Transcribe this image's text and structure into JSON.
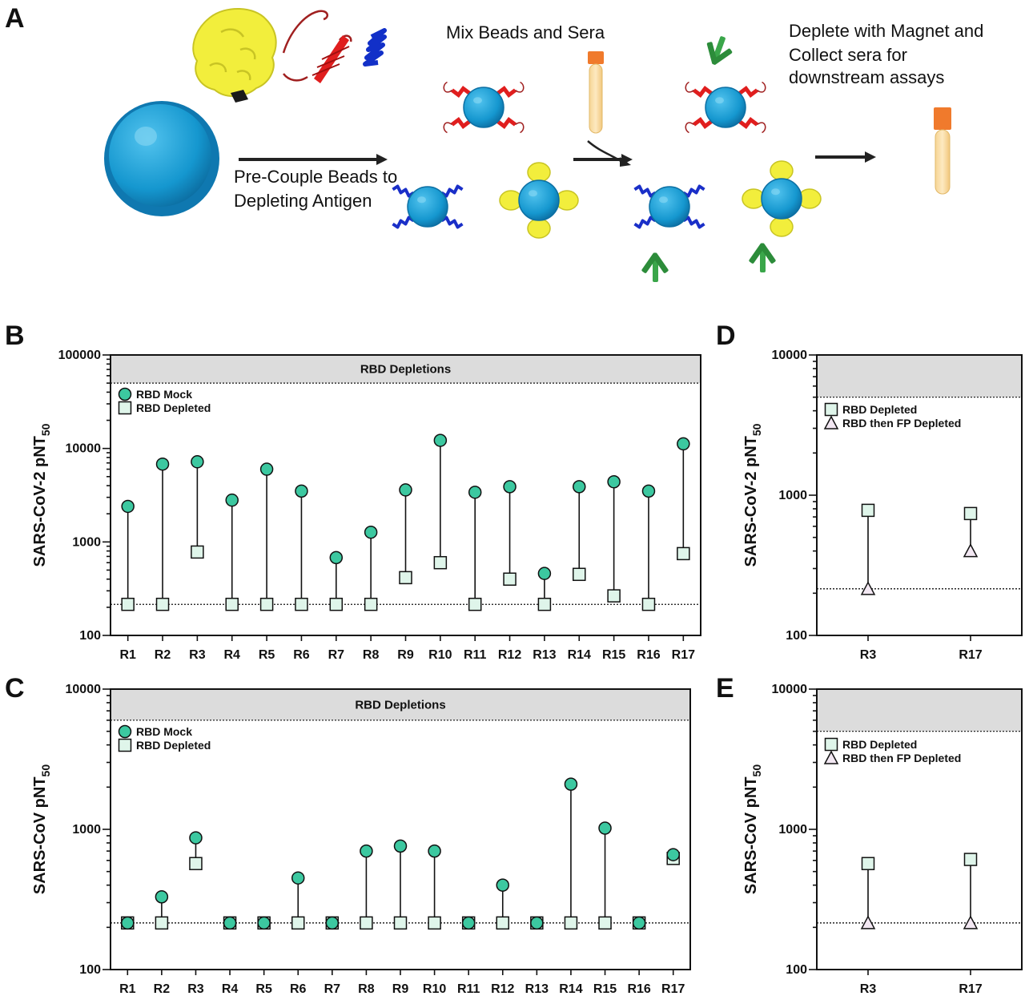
{
  "schematic": {
    "letter": "A",
    "step1": [
      "Pre-Couple Beads to",
      "Depleting Antigen"
    ],
    "step2": [
      "Mix Beads and Sera"
    ],
    "step3": [
      "Deplete with Magnet and",
      "Collect sera for",
      "downstream assays"
    ]
  },
  "colors": {
    "mock": "#3cc8a0",
    "depleted": "#dff5ea",
    "triangle": "#f3e8f3",
    "bead": "#1597cf",
    "band": "#dcdcdc"
  },
  "chart_data": [
    {
      "letter": "B",
      "type": "scatter",
      "scale": "log",
      "ylabel": "SARS-CoV-2 pNT",
      "ylabel_sub": "50",
      "band_label": "RBD Depletions",
      "band_from": 50000,
      "ylim": [
        100,
        100000
      ],
      "ticks": [
        100,
        1000,
        10000,
        100000
      ],
      "tick_labels": [
        "100",
        "1000",
        "10000",
        "100000"
      ],
      "threshold": 215,
      "categories": [
        "R1",
        "R2",
        "R3",
        "R4",
        "R5",
        "R6",
        "R7",
        "R8",
        "R9",
        "R10",
        "R11",
        "R12",
        "R13",
        "R14",
        "R15",
        "R16",
        "R17"
      ],
      "series": [
        {
          "name": "RBD Mock",
          "marker": "circle",
          "values": [
            2400,
            6800,
            7200,
            2800,
            6000,
            3500,
            680,
            1270,
            3600,
            12200,
            3400,
            3900,
            460,
            3900,
            4400,
            3500,
            11200
          ]
        },
        {
          "name": "RBD Depleted",
          "marker": "square",
          "values": [
            215,
            215,
            780,
            215,
            215,
            215,
            215,
            215,
            415,
            600,
            215,
            400,
            215,
            450,
            265,
            215,
            750
          ]
        }
      ]
    },
    {
      "letter": "C",
      "type": "scatter",
      "scale": "log",
      "ylabel": "SARS-CoV pNT",
      "ylabel_sub": "50",
      "band_label": "RBD Depletions",
      "band_from": 6000,
      "ylim": [
        100,
        10000
      ],
      "ticks": [
        100,
        1000,
        10000
      ],
      "tick_labels": [
        "100",
        "1000",
        "10000"
      ],
      "threshold": 215,
      "categories": [
        "R1",
        "R2",
        "R3",
        "R4",
        "R5",
        "R6",
        "R7",
        "R8",
        "R9",
        "R10",
        "R11",
        "R12",
        "R13",
        "R14",
        "R15",
        "R16",
        "R17"
      ],
      "series": [
        {
          "name": "RBD Mock",
          "marker": "circle",
          "values": [
            215,
            330,
            870,
            215,
            215,
            450,
            215,
            700,
            760,
            700,
            215,
            400,
            215,
            2100,
            1020,
            215,
            660
          ]
        },
        {
          "name": "RBD Depleted",
          "marker": "square",
          "values": [
            215,
            215,
            570,
            215,
            215,
            215,
            215,
            215,
            215,
            215,
            215,
            215,
            215,
            215,
            215,
            215,
            620
          ]
        }
      ]
    },
    {
      "letter": "D",
      "type": "scatter",
      "scale": "log",
      "ylabel": "SARS-CoV-2 pNT",
      "ylabel_sub": "50",
      "band_label": "",
      "band_from": 5000,
      "ylim": [
        100,
        10000
      ],
      "ticks": [
        100,
        1000,
        10000
      ],
      "tick_labels": [
        "100",
        "1000",
        "10000"
      ],
      "threshold": 215,
      "categories": [
        "R3",
        "R17"
      ],
      "series": [
        {
          "name": "RBD Depleted",
          "marker": "square",
          "values": [
            780,
            740
          ]
        },
        {
          "name": "RBD then FP Depleted",
          "marker": "triangle",
          "values": [
            215,
            400
          ]
        }
      ]
    },
    {
      "letter": "E",
      "type": "scatter",
      "scale": "log",
      "ylabel": "SARS-CoV pNT",
      "ylabel_sub": "50",
      "band_label": "",
      "band_from": 5000,
      "ylim": [
        100,
        10000
      ],
      "ticks": [
        100,
        1000,
        10000
      ],
      "tick_labels": [
        "100",
        "1000",
        "10000"
      ],
      "threshold": 215,
      "categories": [
        "R3",
        "R17"
      ],
      "series": [
        {
          "name": "RBD Depleted",
          "marker": "square",
          "values": [
            570,
            610
          ]
        },
        {
          "name": "RBD then FP Depleted",
          "marker": "triangle",
          "values": [
            215,
            215
          ]
        }
      ]
    }
  ]
}
